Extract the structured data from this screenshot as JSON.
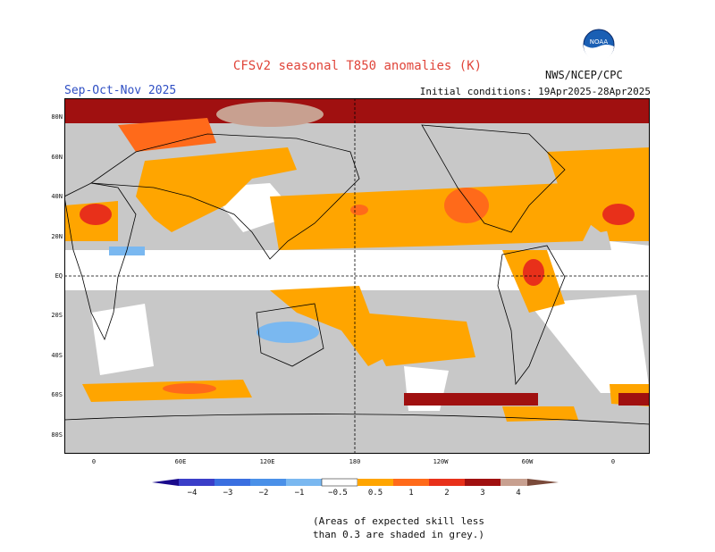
{
  "header": {
    "title": "CFSv2 seasonal T850 anomalies (K)",
    "season": "Sep-Oct-Nov 2025",
    "initial_conditions": "Initial conditions: 19Apr2025-28Apr2025",
    "agency": "NWS/NCEP/CPC",
    "logo_text": "NOAA"
  },
  "map": {
    "lat_labels": [
      "80N",
      "60N",
      "40N",
      "20N",
      "EQ",
      "20S",
      "40S",
      "60S",
      "80S"
    ],
    "lon_labels": [
      "0",
      "60E",
      "120E",
      "180",
      "120W",
      "60W",
      "0"
    ]
  },
  "legend": {
    "labels": [
      "−4",
      "−3",
      "−2",
      "−1",
      "−0.5",
      "0.5",
      "1",
      "2",
      "3",
      "4"
    ],
    "colors": {
      "lt_m4": "#1a0a8c",
      "m4_m3": "#3a3ec8",
      "m3_m2": "#3a6fe0",
      "m2_m1": "#4a90e8",
      "m1_m05": "#7ab8f0",
      "neutral": "#ffffff",
      "p05_1": "#ffa500",
      "p1_2": "#ff6a1a",
      "p2_3": "#e8301a",
      "p3_4": "#a01010",
      "p4_5": "#c8a090",
      "gt_5": "#7a4a3a"
    },
    "grey_skill_color": "#c8c8c8"
  },
  "footnote": {
    "line1": "(Areas of expected skill less",
    "line2": "than 0.3 are shaded in grey.)"
  }
}
